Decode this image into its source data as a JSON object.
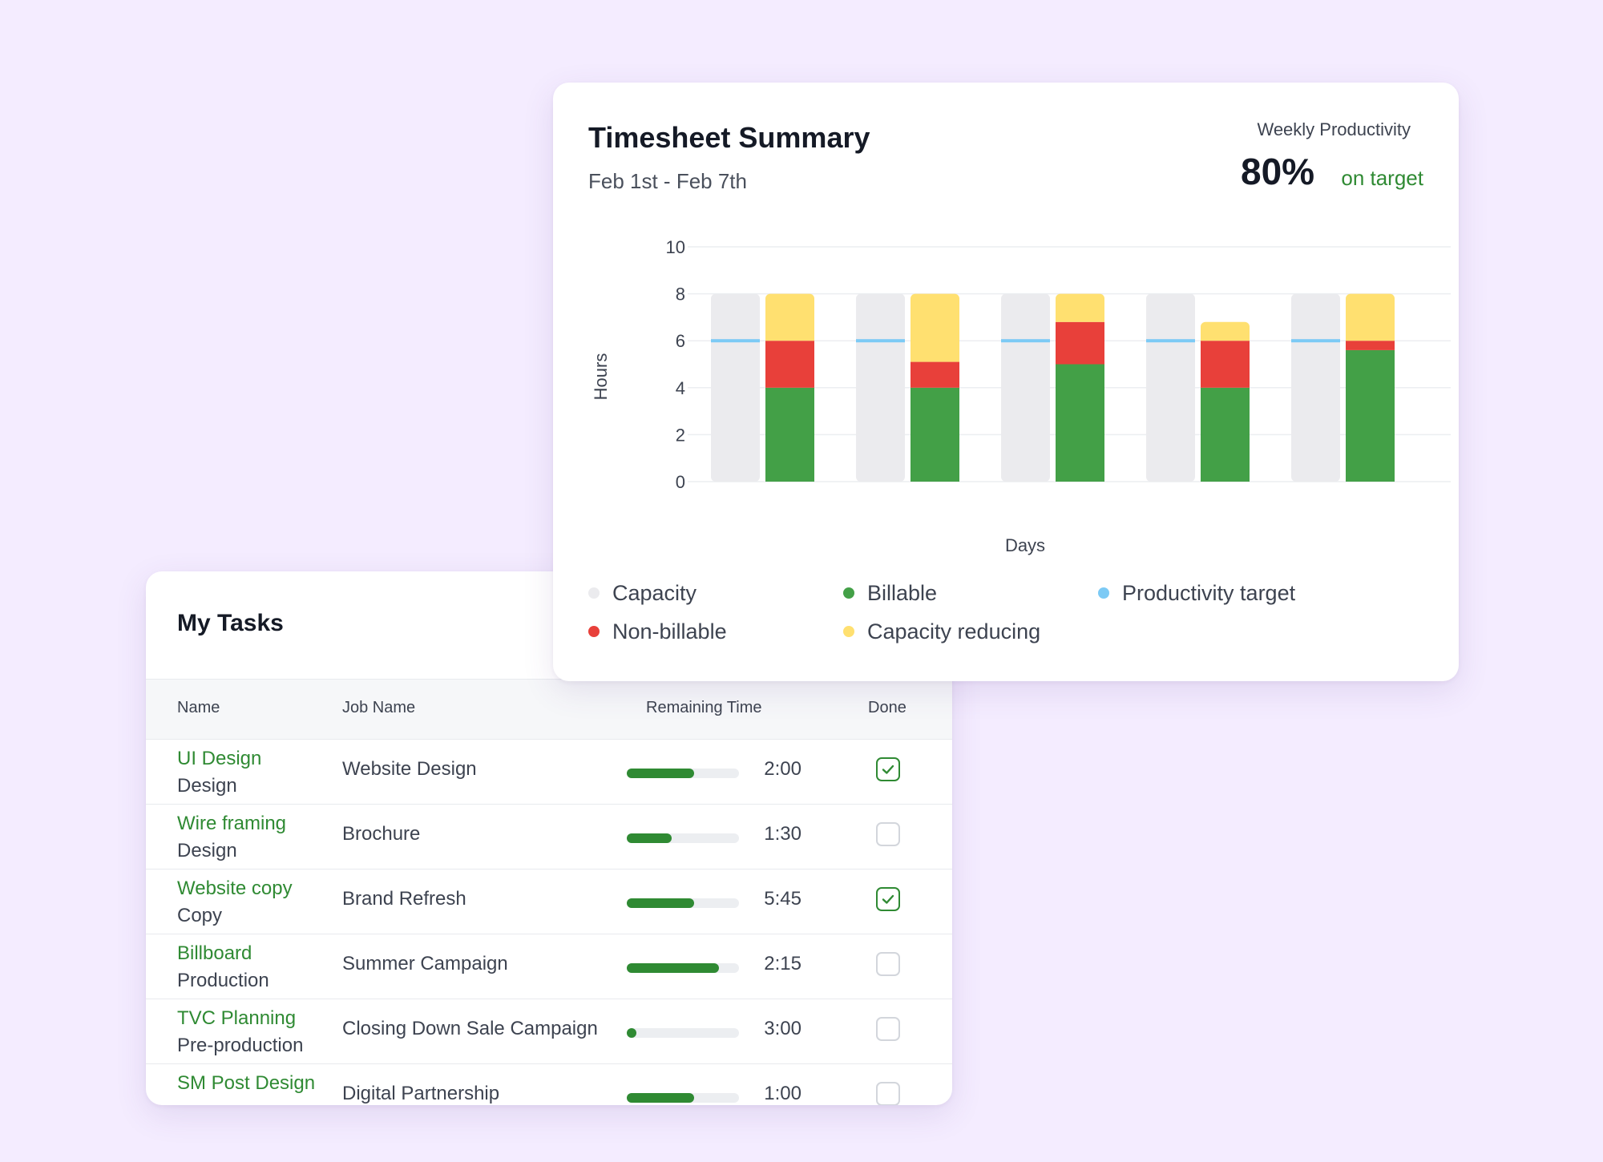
{
  "tasks": {
    "title": "My Tasks",
    "headers": {
      "name": "Name",
      "job": "Job Name",
      "remaining": "Remaining Time",
      "done": "Done"
    },
    "rows": [
      {
        "name": "UI Design",
        "category": "Design",
        "job": "Website Design",
        "progress": 0.6,
        "time": "2:00",
        "done": true
      },
      {
        "name": "Wire framing",
        "category": "Design",
        "job": "Brochure",
        "progress": 0.4,
        "time": "1:30",
        "done": false
      },
      {
        "name": "Website copy",
        "category": "Copy",
        "job": "Brand Refresh",
        "progress": 0.6,
        "time": "5:45",
        "done": true
      },
      {
        "name": "Billboard",
        "category": "Production",
        "job": "Summer Campaign",
        "progress": 0.82,
        "time": "2:15",
        "done": false
      },
      {
        "name": "TVC Planning",
        "category": "Pre-production",
        "job": "Closing Down Sale Campaign",
        "progress": 0.08,
        "time": "3:00",
        "done": false
      },
      {
        "name": "SM Post Design",
        "category": "",
        "job": "Digital Partnership",
        "progress": 0.6,
        "time": "1:00",
        "done": false
      }
    ],
    "colors": {
      "accent": "#2f8a33",
      "track": "#eceef1"
    }
  },
  "summary": {
    "title": "Timesheet Summary",
    "date_range": "Feb 1st - Feb 7th",
    "weekly_productivity_label": "Weekly Productivity",
    "weekly_productivity_value": "80%",
    "weekly_productivity_status": "on target"
  },
  "legend": [
    {
      "label": "Capacity",
      "color": "#ebebee"
    },
    {
      "label": "Billable",
      "color": "#43a047"
    },
    {
      "label": "Productivity target",
      "color": "#7ccaf5"
    },
    {
      "label": "Non-billable",
      "color": "#e8403a"
    },
    {
      "label": "Capacity reducing",
      "color": "#ffe070"
    }
  ],
  "chart_data": {
    "type": "bar",
    "xlabel": "Days",
    "ylabel": "Hours",
    "ylim": [
      0,
      10
    ],
    "yticks": [
      0,
      2,
      4,
      6,
      8,
      10
    ],
    "grid": true,
    "legend_position": "bottom",
    "categories": [
      "",
      "",
      "",
      "",
      ""
    ],
    "capacity": [
      8,
      8,
      8,
      8,
      8
    ],
    "productivity_target": [
      6,
      6,
      6,
      6,
      6
    ],
    "series": [
      {
        "name": "Billable",
        "color": "#43a047",
        "values": [
          4,
          4,
          5,
          4,
          5.6
        ]
      },
      {
        "name": "Non-billable",
        "color": "#e8403a",
        "values": [
          2,
          1.1,
          1.8,
          2,
          0.4
        ]
      },
      {
        "name": "Capacity reducing",
        "color": "#ffe070",
        "values": [
          2,
          2.9,
          1.2,
          0.8,
          2
        ]
      }
    ],
    "colors": {
      "capacity": "#ebebee",
      "target": "#7ccaf5"
    }
  }
}
